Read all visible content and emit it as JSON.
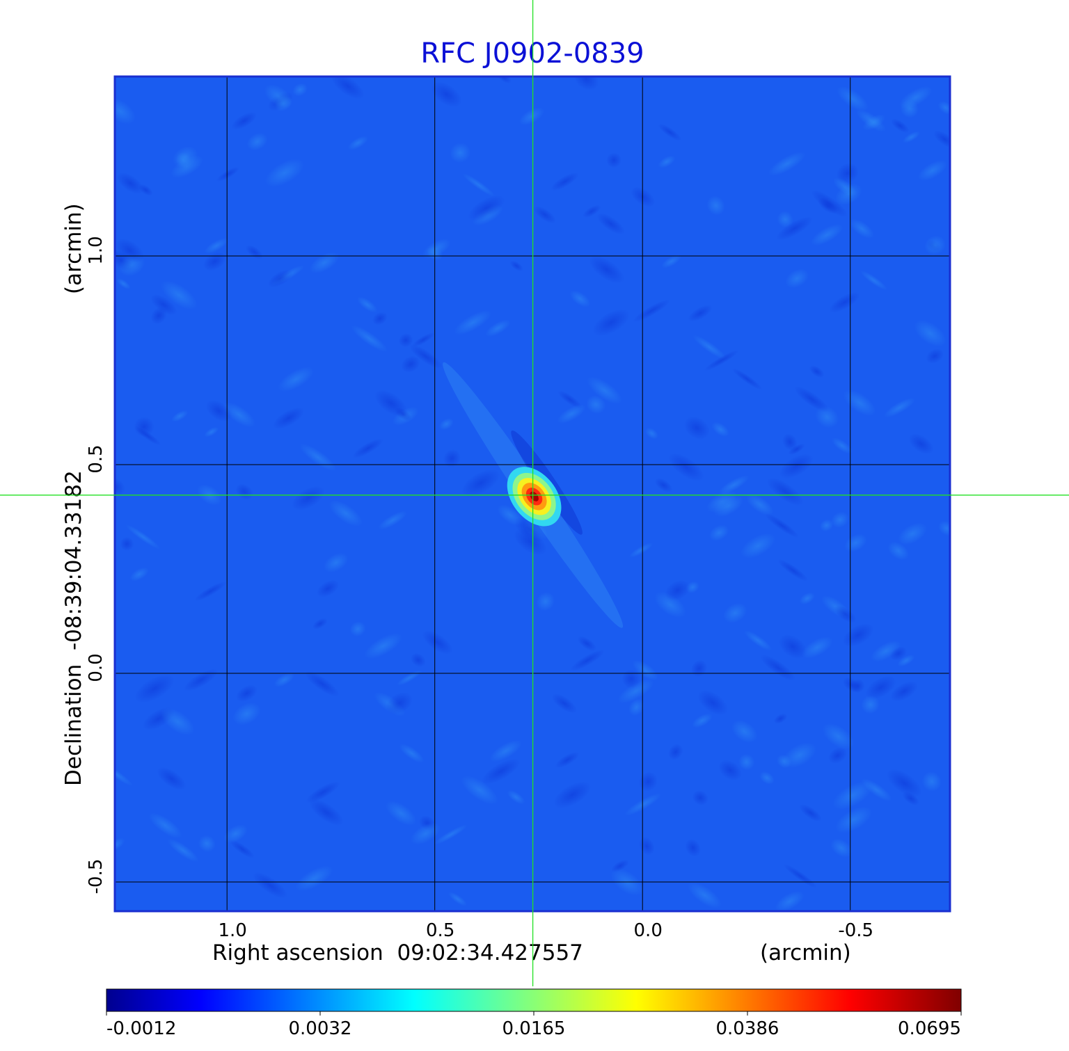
{
  "chart_data": {
    "type": "heatmap",
    "title": "RFC J0902-0839",
    "xlabel": "Right ascension  09:02:34.427557",
    "xunit": "(arcmin)",
    "ylabel": "Declination  -08:39:04.33182",
    "yunit": "(arcmin)",
    "x_ticks": [
      1.0,
      0.5,
      0.0,
      -0.5
    ],
    "x_tick_labels": [
      "1.0",
      "0.5",
      "0.0",
      "-0.5"
    ],
    "y_ticks": [
      1.0,
      0.5,
      0.0,
      -0.5
    ],
    "y_tick_labels": [
      "1.0",
      "0.5",
      "0.0",
      "-0.5"
    ],
    "xlim": [
      1.27,
      -0.74
    ],
    "ylim": [
      -0.57,
      1.43
    ],
    "grid": true,
    "crosshair": {
      "x": 0.264,
      "y": 0.427
    },
    "source_peak": {
      "x": 0.264,
      "y": 0.427,
      "value": 0.0695
    },
    "colorbar": {
      "ticks": [
        -0.0012,
        0.0032,
        0.0165,
        0.0386,
        0.0695
      ],
      "tick_labels": [
        "-0.0012",
        "0.0032",
        "0.0165",
        "0.0386",
        "0.0695"
      ],
      "colormap": "jet"
    }
  },
  "colors": {
    "title": "#0b10d6",
    "crosshair": "#22e022",
    "grid": "#000000",
    "frame": "#1a2fd0",
    "background_level": "#1a5cf0"
  }
}
